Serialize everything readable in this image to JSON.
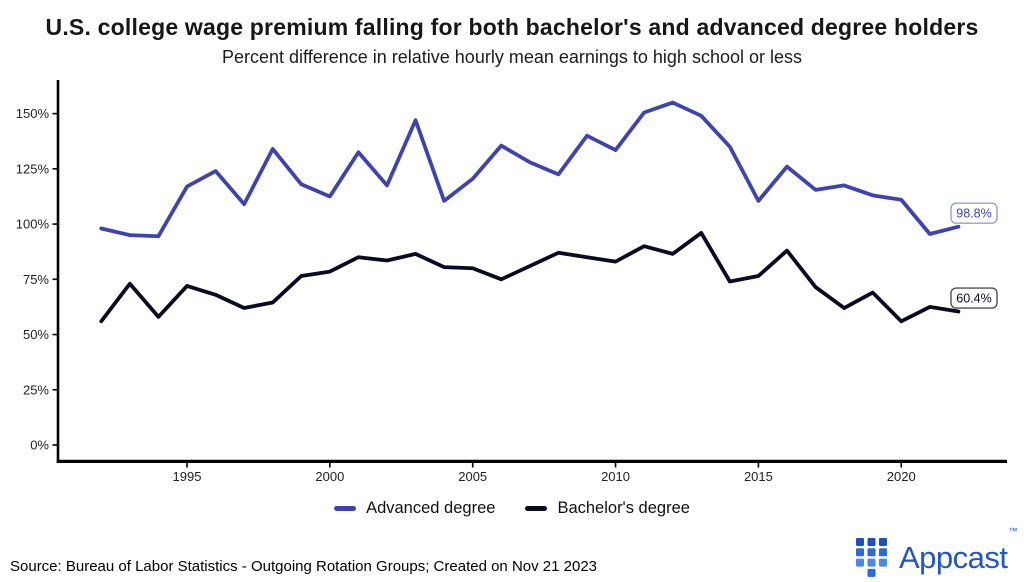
{
  "header": {
    "title": "U.S. college wage premium falling for both bachelor's and advanced degree holders",
    "subtitle": "Percent difference in relative hourly mean earnings to high school or less"
  },
  "chart_data": {
    "type": "line",
    "title": "U.S. college wage premium falling for both bachelor's and advanced degree holders",
    "subtitle": "Percent difference in relative hourly mean earnings to high school or less",
    "xlabel": "",
    "ylabel": "",
    "x": [
      1992,
      1993,
      1994,
      1995,
      1996,
      1997,
      1998,
      1999,
      2000,
      2001,
      2002,
      2003,
      2004,
      2005,
      2006,
      2007,
      2008,
      2009,
      2010,
      2011,
      2012,
      2013,
      2014,
      2015,
      2016,
      2017,
      2018,
      2019,
      2020,
      2021,
      2022
    ],
    "series": [
      {
        "name": "Advanced degree",
        "color": "#3e43b1",
        "end_label": "98.8%",
        "label_border": "#9aa0cc",
        "values": [
          98,
          95,
          94.5,
          117,
          124,
          109,
          134,
          118,
          112.5,
          132.5,
          117.5,
          147,
          110.5,
          120.5,
          135.5,
          128,
          122.5,
          140,
          133.5,
          150.5,
          155,
          149,
          135,
          110.5,
          126,
          115.5,
          117.5,
          113,
          111,
          95.5,
          98.8
        ]
      },
      {
        "name": "Bachelor's degree",
        "color": "#0a0a23",
        "end_label": "60.4%",
        "label_border": "#50505c",
        "values": [
          56,
          73,
          58,
          72,
          68,
          62,
          64.5,
          76.5,
          78.5,
          85,
          83.5,
          86.5,
          80.5,
          80,
          75,
          81,
          87,
          85,
          83,
          90,
          86.5,
          96,
          74,
          76.5,
          88,
          71.5,
          62,
          69,
          56,
          62.5,
          60.4
        ]
      }
    ],
    "x_axis": {
      "ticks": [
        1995,
        2000,
        2005,
        2010,
        2015,
        2020
      ]
    },
    "y_axis": {
      "ticks": [
        0,
        25,
        50,
        75,
        100,
        125,
        150
      ],
      "unit": "%"
    },
    "xlim": [
      1991.8,
      2023
    ],
    "ylim": [
      0,
      158
    ],
    "grid": false,
    "legend_position": "bottom"
  },
  "footer": {
    "source": "Source: Bureau of Labor Statistics - Outgoing Rotation Groups; Created on Nov 21 2023",
    "brand": {
      "name": "Appcast",
      "trademark": "™",
      "color": "#2056c7"
    }
  }
}
